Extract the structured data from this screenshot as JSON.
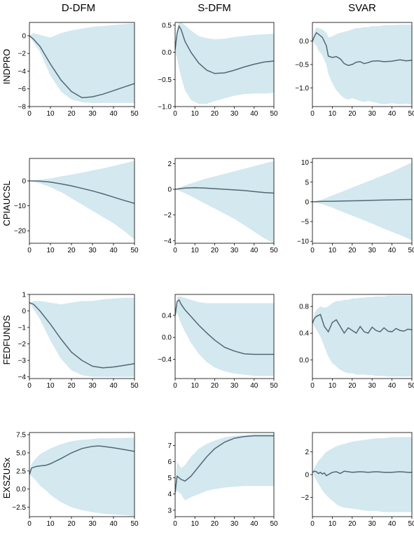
{
  "column_titles": [
    "D-DFM",
    "S-DFM",
    "SVAR"
  ],
  "row_labels": [
    "INDPRO",
    "CPIAUCSL",
    "FEDFUNDS",
    "EXSZUSx"
  ],
  "colors": {
    "band": "#d3e8ef",
    "line": "#526873"
  },
  "chart_data": [
    {
      "type": "area",
      "row": "INDPRO",
      "column": "D-DFM",
      "xlim": [
        0,
        50
      ],
      "ylim": [
        -8,
        1.5
      ],
      "xticks": [
        0,
        10,
        20,
        30,
        40,
        50
      ],
      "yticks": [
        0,
        -2,
        -4,
        -6,
        -8
      ],
      "x": [
        0,
        2,
        5,
        10,
        15,
        20,
        25,
        30,
        35,
        40,
        45,
        50
      ],
      "median": [
        0,
        -0.4,
        -1.2,
        -3.2,
        -5.0,
        -6.3,
        -7.0,
        -6.9,
        -6.6,
        -6.2,
        -5.8,
        -5.4
      ],
      "lower": [
        0,
        -0.8,
        -1.8,
        -4.5,
        -6.3,
        -7.2,
        -7.5,
        -7.6,
        -7.6,
        -7.6,
        -7.6,
        -7.6
      ],
      "upper": [
        0,
        0.3,
        0.1,
        -0.2,
        0.3,
        0.6,
        0.8,
        1.0,
        1.1,
        1.2,
        1.3,
        1.4
      ]
    },
    {
      "type": "area",
      "row": "INDPRO",
      "column": "S-DFM",
      "xlim": [
        0,
        50
      ],
      "ylim": [
        -1.0,
        0.55
      ],
      "xticks": [
        0,
        10,
        20,
        30,
        40,
        50
      ],
      "yticks": [
        0.5,
        0.0,
        -0.5,
        -1.0
      ],
      "x": [
        0,
        1,
        2,
        3,
        5,
        8,
        12,
        16,
        20,
        25,
        30,
        35,
        40,
        45,
        50
      ],
      "median": [
        0.05,
        0.35,
        0.48,
        0.42,
        0.2,
        0.0,
        -0.2,
        -0.33,
        -0.39,
        -0.38,
        -0.33,
        -0.27,
        -0.22,
        -0.18,
        -0.16
      ],
      "lower": [
        0.0,
        -0.1,
        -0.3,
        -0.45,
        -0.7,
        -0.88,
        -0.95,
        -0.95,
        -0.9,
        -0.85,
        -0.8,
        -0.77,
        -0.76,
        -0.76,
        -0.75
      ],
      "upper": [
        0.1,
        0.45,
        0.55,
        0.55,
        0.5,
        0.4,
        0.3,
        0.26,
        0.24,
        0.25,
        0.28,
        0.3,
        0.32,
        0.33,
        0.34
      ]
    },
    {
      "type": "area",
      "row": "INDPRO",
      "column": "SVAR",
      "xlim": [
        0,
        50
      ],
      "ylim": [
        -1.4,
        0.4
      ],
      "xticks": [
        0,
        10,
        20,
        30,
        40,
        50
      ],
      "yticks": [
        0.0,
        -0.5,
        -1.0
      ],
      "x": [
        0,
        1,
        2,
        3,
        5,
        7,
        8,
        10,
        12,
        14,
        16,
        18,
        20,
        22,
        24,
        26,
        28,
        30,
        33,
        36,
        40,
        44,
        47,
        50
      ],
      "median": [
        0.0,
        0.1,
        0.18,
        0.15,
        0.08,
        -0.1,
        -0.32,
        -0.35,
        -0.33,
        -0.38,
        -0.48,
        -0.52,
        -0.5,
        -0.45,
        -0.44,
        -0.48,
        -0.46,
        -0.43,
        -0.42,
        -0.44,
        -0.43,
        -0.4,
        -0.42,
        -0.41
      ],
      "lower": [
        0.0,
        -0.05,
        -0.1,
        -0.2,
        -0.3,
        -0.5,
        -0.7,
        -0.9,
        -1.05,
        -1.15,
        -1.22,
        -1.25,
        -1.22,
        -1.25,
        -1.28,
        -1.3,
        -1.28,
        -1.3,
        -1.33,
        -1.35,
        -1.33,
        -1.35,
        -1.34,
        -1.35
      ],
      "upper": [
        0.0,
        0.2,
        0.3,
        0.28,
        0.25,
        0.18,
        0.08,
        0.1,
        0.15,
        0.18,
        0.2,
        0.22,
        0.25,
        0.28,
        0.28,
        0.3,
        0.3,
        0.32,
        0.32,
        0.34,
        0.34,
        0.35,
        0.35,
        0.35
      ]
    },
    {
      "type": "area",
      "row": "CPIAUCSL",
      "column": "D-DFM",
      "xlim": [
        0,
        50
      ],
      "ylim": [
        -25,
        9
      ],
      "xticks": [
        0,
        10,
        20,
        30,
        40,
        50
      ],
      "yticks": [
        0,
        -10,
        -20
      ],
      "x": [
        0,
        5,
        10,
        15,
        20,
        25,
        30,
        35,
        40,
        45,
        50
      ],
      "median": [
        0,
        -0.1,
        -0.5,
        -1.2,
        -2.0,
        -3.0,
        -4.0,
        -5.2,
        -6.5,
        -7.8,
        -9.0
      ],
      "lower": [
        0,
        -1.0,
        -2.5,
        -4.5,
        -7.0,
        -9.5,
        -12.0,
        -14.5,
        -17.0,
        -20.0,
        -23.5
      ],
      "upper": [
        0,
        0.5,
        1.0,
        1.8,
        2.5,
        3.3,
        4.2,
        5.0,
        6.0,
        7.0,
        8.0
      ]
    },
    {
      "type": "area",
      "row": "CPIAUCSL",
      "column": "S-DFM",
      "xlim": [
        0,
        50
      ],
      "ylim": [
        -4.2,
        2.4
      ],
      "xticks": [
        0,
        10,
        20,
        30,
        40,
        50
      ],
      "yticks": [
        2,
        0,
        -2,
        -4
      ],
      "x": [
        0,
        5,
        10,
        15,
        20,
        25,
        30,
        35,
        40,
        45,
        50
      ],
      "median": [
        0.0,
        0.1,
        0.12,
        0.1,
        0.05,
        0.0,
        -0.05,
        -0.1,
        -0.18,
        -0.25,
        -0.3
      ],
      "lower": [
        0.0,
        -0.3,
        -0.7,
        -1.1,
        -1.5,
        -1.9,
        -2.3,
        -2.8,
        -3.3,
        -3.8,
        -4.2
      ],
      "upper": [
        0.0,
        0.3,
        0.55,
        0.8,
        1.0,
        1.2,
        1.4,
        1.6,
        1.8,
        2.0,
        2.2
      ]
    },
    {
      "type": "area",
      "row": "CPIAUCSL",
      "column": "SVAR",
      "xlim": [
        0,
        50
      ],
      "ylim": [
        -10.5,
        11
      ],
      "xticks": [
        0,
        10,
        20,
        30,
        40,
        50
      ],
      "yticks": [
        10,
        5,
        0,
        -5,
        -10
      ],
      "x": [
        0,
        5,
        10,
        15,
        20,
        25,
        30,
        35,
        40,
        45,
        50
      ],
      "median": [
        0.0,
        0.1,
        0.15,
        0.2,
        0.25,
        0.3,
        0.4,
        0.45,
        0.5,
        0.55,
        0.6
      ],
      "lower": [
        0.0,
        -0.6,
        -1.5,
        -2.5,
        -3.5,
        -4.5,
        -5.5,
        -6.6,
        -7.6,
        -8.6,
        -9.8
      ],
      "upper": [
        0.0,
        0.6,
        1.6,
        2.6,
        3.6,
        4.6,
        5.6,
        6.6,
        7.6,
        8.8,
        10.0
      ]
    },
    {
      "type": "area",
      "row": "FEDFUNDS",
      "column": "D-DFM",
      "xlim": [
        0,
        50
      ],
      "ylim": [
        -4.1,
        1.0
      ],
      "xticks": [
        0,
        10,
        20,
        30,
        40,
        50
      ],
      "yticks": [
        1,
        0,
        -1,
        -2,
        -3,
        -4
      ],
      "x": [
        0,
        2,
        5,
        10,
        15,
        20,
        25,
        30,
        35,
        40,
        45,
        50
      ],
      "median": [
        0.5,
        0.4,
        0.0,
        -0.8,
        -1.7,
        -2.5,
        -3.0,
        -3.35,
        -3.45,
        -3.4,
        -3.3,
        -3.2
      ],
      "lower": [
        0.5,
        0.1,
        -0.5,
        -1.8,
        -2.9,
        -3.6,
        -3.9,
        -4.0,
        -4.0,
        -4.0,
        -4.0,
        -4.0
      ],
      "upper": [
        0.5,
        0.6,
        0.6,
        0.5,
        0.4,
        0.5,
        0.6,
        0.6,
        0.7,
        0.75,
        0.8,
        0.8
      ]
    },
    {
      "type": "area",
      "row": "FEDFUNDS",
      "column": "S-DFM",
      "xlim": [
        0,
        50
      ],
      "ylim": [
        -0.75,
        0.78
      ],
      "xticks": [
        0,
        10,
        20,
        30,
        40,
        50
      ],
      "yticks": [
        0.4,
        0.0,
        -0.4
      ],
      "x": [
        0,
        1,
        2,
        3,
        5,
        8,
        12,
        16,
        20,
        25,
        30,
        35,
        40,
        45,
        50
      ],
      "median": [
        0.4,
        0.65,
        0.68,
        0.6,
        0.5,
        0.38,
        0.22,
        0.08,
        -0.05,
        -0.18,
        -0.25,
        -0.3,
        -0.31,
        -0.31,
        -0.31
      ],
      "lower": [
        0.35,
        0.45,
        0.35,
        0.25,
        0.1,
        -0.1,
        -0.3,
        -0.45,
        -0.55,
        -0.62,
        -0.66,
        -0.68,
        -0.7,
        -0.7,
        -0.7
      ],
      "upper": [
        0.45,
        0.72,
        0.75,
        0.74,
        0.72,
        0.68,
        0.64,
        0.62,
        0.62,
        0.62,
        0.62,
        0.62,
        0.62,
        0.62,
        0.62
      ]
    },
    {
      "type": "area",
      "row": "FEDFUNDS",
      "column": "SVAR",
      "xlim": [
        0,
        50
      ],
      "ylim": [
        -0.28,
        0.98
      ],
      "xticks": [
        0,
        10,
        20,
        30,
        40,
        50
      ],
      "yticks": [
        0.8,
        0.4,
        0.0
      ],
      "x": [
        0,
        1,
        2,
        4,
        6,
        8,
        10,
        12,
        14,
        16,
        18,
        20,
        22,
        24,
        26,
        28,
        30,
        32,
        34,
        36,
        38,
        40,
        42,
        44,
        46,
        48,
        50
      ],
      "median": [
        0.55,
        0.62,
        0.65,
        0.68,
        0.5,
        0.42,
        0.56,
        0.6,
        0.5,
        0.4,
        0.48,
        0.44,
        0.4,
        0.5,
        0.42,
        0.4,
        0.49,
        0.44,
        0.42,
        0.48,
        0.43,
        0.42,
        0.47,
        0.44,
        0.43,
        0.46,
        0.45
      ],
      "lower": [
        0.55,
        0.5,
        0.45,
        0.35,
        0.2,
        0.05,
        -0.05,
        -0.1,
        -0.15,
        -0.18,
        -0.2,
        -0.2,
        -0.22,
        -0.22,
        -0.22,
        -0.23,
        -0.23,
        -0.24,
        -0.24,
        -0.24,
        -0.25,
        -0.25,
        -0.25,
        -0.25,
        -0.25,
        -0.25,
        -0.25
      ],
      "upper": [
        0.55,
        0.68,
        0.75,
        0.8,
        0.78,
        0.8,
        0.85,
        0.88,
        0.88,
        0.9,
        0.9,
        0.92,
        0.92,
        0.93,
        0.93,
        0.94,
        0.94,
        0.95,
        0.95,
        0.95,
        0.96,
        0.96,
        0.96,
        0.96,
        0.96,
        0.96,
        0.96
      ]
    },
    {
      "type": "area",
      "row": "EXSZUSx",
      "column": "D-DFM",
      "xlim": [
        0,
        50
      ],
      "ylim": [
        -3.8,
        7.8
      ],
      "xticks": [
        0,
        10,
        20,
        30,
        40,
        50
      ],
      "yticks": [
        7.5,
        5.0,
        2.5,
        0.0,
        -2.5
      ],
      "x": [
        0,
        1,
        3,
        5,
        8,
        10,
        15,
        20,
        25,
        30,
        33,
        35,
        40,
        45,
        50
      ],
      "median": [
        2.0,
        2.9,
        3.1,
        3.2,
        3.3,
        3.5,
        4.2,
        5.0,
        5.6,
        5.9,
        5.95,
        5.9,
        5.7,
        5.45,
        5.2
      ],
      "lower": [
        2.0,
        1.8,
        1.2,
        0.5,
        -0.2,
        -0.8,
        -1.8,
        -2.5,
        -2.9,
        -3.2,
        -3.3,
        -3.4,
        -3.5,
        -3.6,
        -3.7
      ],
      "upper": [
        2.0,
        3.5,
        4.2,
        4.8,
        5.3,
        5.6,
        6.2,
        6.6,
        6.8,
        6.9,
        7.0,
        7.0,
        7.0,
        7.05,
        7.1
      ]
    },
    {
      "type": "area",
      "row": "EXSZUSx",
      "column": "S-DFM",
      "xlim": [
        0,
        50
      ],
      "ylim": [
        2.6,
        7.8
      ],
      "xticks": [
        0,
        10,
        20,
        30,
        40,
        50
      ],
      "yticks": [
        7,
        6,
        5,
        4,
        3
      ],
      "x": [
        0,
        1,
        3,
        5,
        8,
        12,
        16,
        20,
        25,
        30,
        35,
        40,
        45,
        50
      ],
      "median": [
        4.1,
        5.1,
        4.9,
        4.8,
        5.1,
        5.7,
        6.3,
        6.8,
        7.2,
        7.45,
        7.55,
        7.6,
        7.6,
        7.6
      ],
      "lower": [
        3.9,
        4.2,
        4.0,
        3.6,
        3.8,
        4.0,
        4.2,
        4.3,
        4.4,
        4.45,
        4.5,
        4.5,
        4.5,
        4.5
      ],
      "upper": [
        4.3,
        6.0,
        5.6,
        5.8,
        6.3,
        6.8,
        7.1,
        7.3,
        7.5,
        7.6,
        7.65,
        7.7,
        7.7,
        7.7
      ]
    },
    {
      "type": "area",
      "row": "EXSZUSx",
      "column": "SVAR",
      "xlim": [
        0,
        50
      ],
      "ylim": [
        -3.7,
        3.7
      ],
      "xticks": [
        0,
        10,
        20,
        30,
        40,
        50
      ],
      "yticks": [
        2,
        0,
        -2
      ],
      "x": [
        0,
        1,
        2,
        3,
        4,
        5,
        6,
        7,
        8,
        10,
        12,
        14,
        16,
        20,
        24,
        28,
        32,
        36,
        40,
        44,
        48,
        50
      ],
      "median": [
        0.2,
        0.3,
        0.25,
        0.1,
        0.2,
        0.05,
        0.15,
        -0.1,
        0.0,
        0.2,
        0.25,
        0.1,
        0.3,
        0.2,
        0.25,
        0.2,
        0.25,
        0.2,
        0.2,
        0.25,
        0.2,
        0.2
      ],
      "lower": [
        0.2,
        -0.2,
        -0.5,
        -0.8,
        -1.1,
        -1.4,
        -1.6,
        -1.8,
        -2.0,
        -2.3,
        -2.6,
        -2.8,
        -2.9,
        -3.0,
        -3.1,
        -3.2,
        -3.2,
        -3.3,
        -3.3,
        -3.3,
        -3.3,
        -3.3
      ],
      "upper": [
        0.2,
        0.6,
        0.9,
        1.2,
        1.4,
        1.6,
        1.8,
        2.0,
        2.1,
        2.3,
        2.5,
        2.6,
        2.7,
        2.9,
        3.0,
        3.1,
        3.2,
        3.2,
        3.3,
        3.3,
        3.3,
        3.3
      ]
    }
  ]
}
